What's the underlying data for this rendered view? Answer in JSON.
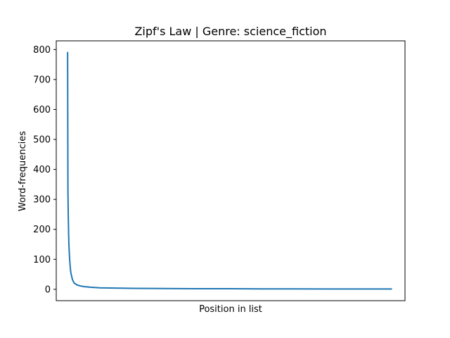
{
  "chart_data": {
    "type": "line",
    "title": "Zipf's Law | Genre: science_fiction",
    "xlabel": "Position in list",
    "ylabel": "Word-frequencies",
    "x_ticks_shown": false,
    "ylim": [
      -38,
      829
    ],
    "xlim": [
      -35,
      1040
    ],
    "yticks": [
      0,
      100,
      200,
      300,
      400,
      500,
      600,
      700,
      800
    ],
    "grid": false,
    "line_color": "#1f77b4",
    "series": [
      {
        "x": [
          0,
          1,
          2,
          3,
          4,
          6,
          8,
          10,
          15,
          20,
          30,
          40,
          50,
          70,
          100,
          150,
          200,
          300,
          400,
          500,
          600,
          700,
          800,
          900,
          1000
        ],
        "values": [
          792,
          330,
          250,
          190,
          150,
          105,
          75,
          55,
          32,
          21,
          14,
          11,
          9,
          7,
          5,
          4,
          3,
          2.5,
          2,
          1.8,
          1.5,
          1.3,
          1.2,
          1.1,
          1
        ]
      }
    ]
  }
}
